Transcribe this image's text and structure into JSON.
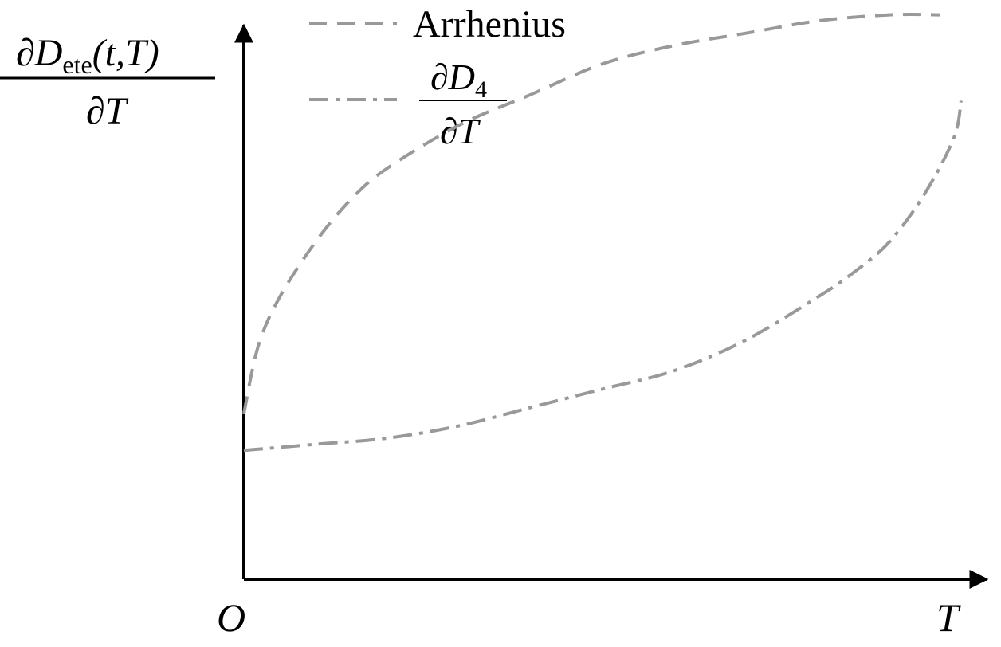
{
  "chart_data": {
    "type": "line",
    "title": "",
    "axes": {
      "origin_label": "O",
      "xlabel": "T",
      "ylabel": {
        "numerator_main": "∂D",
        "numerator_sub": "ete",
        "numerator_args": "(t,T)",
        "denominator": "∂T"
      },
      "xlim": [
        0,
        1
      ],
      "ylim": [
        0,
        1
      ],
      "ticks": false,
      "grid": false
    },
    "legend": {
      "placement": "top-center",
      "entries": [
        {
          "series": "arrhenius",
          "label": "Arrhenius",
          "style": "dashed"
        },
        {
          "series": "d4",
          "label_numerator_main": "∂D",
          "label_numerator_sub": "4",
          "label_denominator": "∂T",
          "style": "dash-dot"
        }
      ]
    },
    "series": [
      {
        "id": "arrhenius",
        "name": "Arrhenius",
        "style": "dashed",
        "color": "#999999",
        "x": [
          0,
          0.02,
          0.05,
          0.1,
          0.15,
          0.2,
          0.3,
          0.4,
          0.5,
          0.6,
          0.7,
          0.8,
          0.9,
          0.97
        ],
        "y": [
          0.27,
          0.38,
          0.46,
          0.55,
          0.62,
          0.67,
          0.74,
          0.79,
          0.84,
          0.87,
          0.89,
          0.91,
          0.92,
          0.92
        ]
      },
      {
        "id": "d4",
        "name": "∂D4/∂T",
        "style": "dash-dot",
        "color": "#999999",
        "x": [
          0,
          0.1,
          0.2,
          0.3,
          0.4,
          0.5,
          0.6,
          0.7,
          0.8,
          0.85,
          0.9,
          0.95,
          0.99,
          1.0
        ],
        "y": [
          0.21,
          0.22,
          0.23,
          0.25,
          0.28,
          0.31,
          0.34,
          0.39,
          0.46,
          0.5,
          0.55,
          0.63,
          0.72,
          0.78
        ]
      }
    ]
  }
}
